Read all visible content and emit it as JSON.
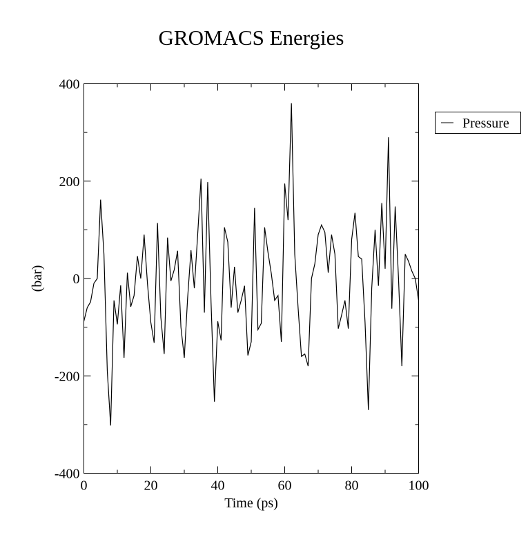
{
  "chart_data": {
    "type": "line",
    "title": "GROMACS Energies",
    "xlabel": "Time (ps)",
    "ylabel": "(bar)",
    "xlim": [
      0,
      100
    ],
    "ylim": [
      -400,
      400
    ],
    "x_major_ticks": [
      0,
      20,
      40,
      60,
      80,
      100
    ],
    "x_tick_labels": [
      "0",
      "20",
      "40",
      "60",
      "80",
      "100"
    ],
    "x_minor_ticks": [
      10,
      30,
      50,
      70,
      90
    ],
    "y_major_ticks": [
      -400,
      -200,
      0,
      200,
      400
    ],
    "y_tick_labels": [
      "-400",
      "-200",
      "0",
      "200",
      "400"
    ],
    "y_minor_ticks": [
      -300,
      -100,
      100,
      300
    ],
    "grid": false,
    "legend_position": "right",
    "colors": {
      "line": "#000000",
      "background": "#ffffff",
      "frame": "#000000"
    },
    "series": [
      {
        "name": "Pressure",
        "x": [
          0,
          1,
          2,
          3,
          4,
          5,
          6,
          7,
          8,
          9,
          10,
          11,
          12,
          13,
          14,
          15,
          16,
          17,
          18,
          19,
          20,
          21,
          22,
          23,
          24,
          25,
          26,
          27,
          28,
          29,
          30,
          31,
          32,
          33,
          34,
          35,
          36,
          37,
          38,
          39,
          40,
          41,
          42,
          43,
          44,
          45,
          46,
          47,
          48,
          49,
          50,
          51,
          52,
          53,
          54,
          55,
          56,
          57,
          58,
          59,
          60,
          61,
          62,
          63,
          64,
          65,
          66,
          67,
          68,
          69,
          70,
          71,
          72,
          73,
          74,
          75,
          76,
          77,
          78,
          79,
          80,
          81,
          82,
          83,
          84,
          85,
          86,
          87,
          88,
          89,
          90,
          91,
          92,
          93,
          94,
          95,
          96,
          97,
          98,
          99,
          100
        ],
        "y": [
          -88,
          -60,
          -48,
          -10,
          0,
          162,
          50,
          -190,
          -302,
          -45,
          -94,
          -14,
          -163,
          12,
          -58,
          -35,
          46,
          0,
          90,
          -10,
          -90,
          -132,
          114,
          -80,
          -155,
          84,
          -5,
          18,
          57,
          -100,
          -163,
          -40,
          58,
          -20,
          90,
          205,
          -70,
          198,
          -50,
          -253,
          -88,
          -127,
          105,
          75,
          -60,
          24,
          -70,
          -45,
          -15,
          -158,
          -130,
          145,
          -105,
          -92,
          105,
          54,
          10,
          -45,
          -35,
          -130,
          195,
          120,
          360,
          50,
          -60,
          -160,
          -155,
          -180,
          0,
          30,
          90,
          110,
          95,
          12,
          90,
          50,
          -103,
          -75,
          -45,
          -103,
          80,
          135,
          45,
          40,
          -90,
          -270,
          -20,
          100,
          -15,
          155,
          20,
          290,
          -62,
          148,
          0,
          -180,
          50,
          35,
          15,
          0,
          -45
        ]
      }
    ]
  }
}
